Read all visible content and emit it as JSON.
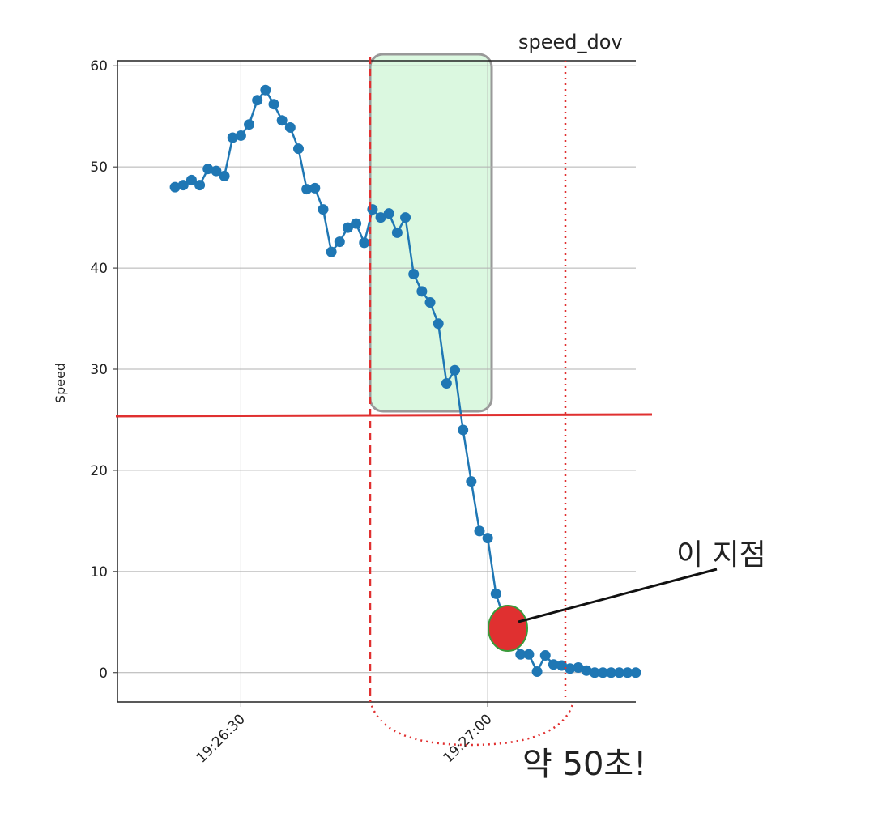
{
  "chart_data": {
    "type": "line",
    "title": "speed_dov",
    "y_label": "Speed",
    "x": [
      "19:26:22",
      "19:26:23",
      "19:26:24",
      "19:26:25",
      "19:26:26",
      "19:26:27",
      "19:26:28",
      "19:26:29",
      "19:26:30",
      "19:26:31",
      "19:26:32",
      "19:26:33",
      "19:26:34",
      "19:26:35",
      "19:26:36",
      "19:26:37",
      "19:26:38",
      "19:26:39",
      "19:26:40",
      "19:26:41",
      "19:26:42",
      "19:26:43",
      "19:26:44",
      "19:26:45",
      "19:26:46",
      "19:26:47",
      "19:26:48",
      "19:26:49",
      "19:26:50",
      "19:26:51",
      "19:26:52",
      "19:26:53",
      "19:26:54",
      "19:26:55",
      "19:26:56",
      "19:26:57",
      "19:26:58",
      "19:26:59",
      "19:27:00",
      "19:27:01",
      "19:27:02",
      "19:27:03",
      "19:27:04",
      "19:27:05",
      "19:27:06",
      "19:27:07",
      "19:27:08",
      "19:27:09",
      "19:27:10",
      "19:27:11",
      "19:27:12",
      "19:27:13",
      "19:27:14",
      "19:27:15",
      "19:27:16",
      "19:27:17",
      "19:27:18"
    ],
    "series": [
      {
        "name": "speed",
        "color": "#1f77b4",
        "values": [
          48.0,
          48.2,
          48.7,
          48.2,
          49.8,
          49.6,
          49.1,
          52.9,
          53.1,
          54.2,
          56.6,
          57.6,
          56.2,
          54.6,
          53.9,
          51.8,
          47.8,
          47.9,
          45.8,
          41.6,
          42.6,
          44.0,
          44.4,
          42.5,
          45.8,
          45.0,
          45.4,
          43.5,
          45.0,
          39.4,
          37.7,
          36.6,
          34.5,
          28.6,
          29.9,
          24.0,
          18.9,
          14.0,
          13.3,
          7.8,
          5.3,
          3.3,
          1.8,
          1.8,
          0.1,
          1.7,
          0.8,
          0.7,
          0.4,
          0.5,
          0.2,
          0,
          0,
          0,
          0,
          0,
          0
        ]
      }
    ],
    "xlim": [
      "19:26:15",
      "19:27:18"
    ],
    "xticks": [
      "19:26:30",
      "19:27:00"
    ],
    "ylim": [
      -2.9,
      60.5
    ],
    "yticks": [
      0,
      10,
      20,
      30,
      40,
      50,
      60
    ],
    "grid": true,
    "annotations": [
      "이 지점",
      "약 50초!"
    ]
  }
}
